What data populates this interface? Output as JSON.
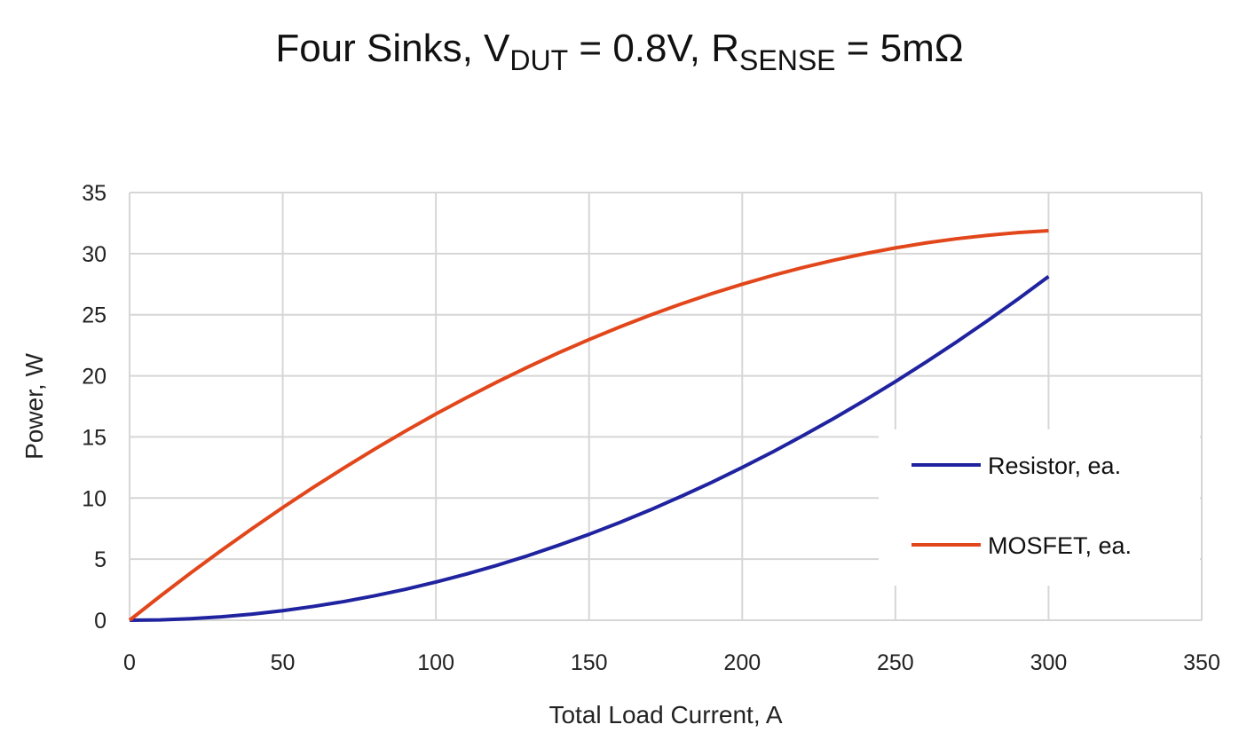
{
  "chart_data": {
    "type": "line",
    "title": {
      "t1": "Four Sinks, V",
      "s1": "DUT",
      "t2": " = 0.8V, R",
      "s2": "SENSE",
      "t3": " = 5mΩ"
    },
    "xlabel": "Total Load Current, A",
    "ylabel": "Power, W",
    "xlim": [
      0,
      350
    ],
    "ylim": [
      0,
      35
    ],
    "xticks": [
      0,
      50,
      100,
      150,
      200,
      250,
      300,
      350
    ],
    "yticks": [
      0,
      5,
      10,
      15,
      20,
      25,
      30,
      35
    ],
    "grid": true,
    "legend_placement": "right",
    "x": [
      0,
      10,
      20,
      30,
      40,
      50,
      60,
      70,
      80,
      90,
      100,
      110,
      120,
      130,
      140,
      150,
      160,
      170,
      180,
      190,
      200,
      210,
      220,
      230,
      240,
      250,
      260,
      270,
      280,
      290,
      300
    ],
    "series": [
      {
        "name": "Resistor, ea.",
        "color": "#2023a0",
        "values": [
          0,
          0.03,
          0.13,
          0.28,
          0.5,
          0.78,
          1.13,
          1.53,
          2,
          2.53,
          3.13,
          3.78,
          4.5,
          5.28,
          6.13,
          7.03,
          8,
          9.03,
          10.13,
          11.28,
          12.5,
          13.78,
          15.13,
          16.53,
          18,
          19.53,
          21.13,
          22.78,
          24.5,
          26.28,
          28.13
        ]
      },
      {
        "name": "MOSFET, ea.",
        "color": "#e2461b",
        "values": [
          0,
          1.97,
          3.88,
          5.72,
          7.5,
          9.22,
          10.88,
          12.47,
          14,
          15.47,
          16.88,
          18.22,
          19.5,
          20.72,
          21.88,
          22.97,
          24,
          24.97,
          25.88,
          26.72,
          27.5,
          28.22,
          28.88,
          29.47,
          30,
          30.47,
          30.88,
          31.22,
          31.5,
          31.72,
          31.88
        ]
      }
    ]
  }
}
